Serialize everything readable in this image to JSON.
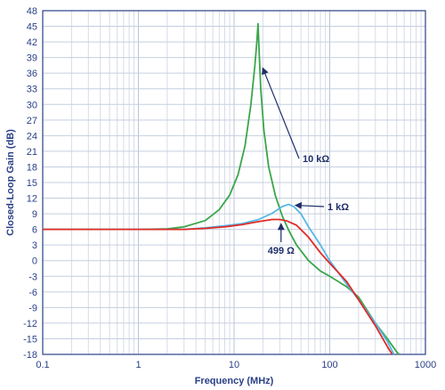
{
  "chart_data": {
    "type": "line",
    "title": "",
    "xlabel": "Frequency (MHz)",
    "ylabel": "Closed-Loop Gain (dB)",
    "xscale": "log",
    "xlim": [
      0.1,
      1000
    ],
    "ylim": [
      -18,
      48
    ],
    "xticks": [
      0.1,
      1,
      10,
      100,
      1000
    ],
    "xtick_labels": [
      "0.1",
      "1",
      "10",
      "100",
      "1000"
    ],
    "yticks": [
      -18,
      -15,
      -12,
      -9,
      -6,
      -3,
      0,
      3,
      6,
      9,
      12,
      15,
      18,
      21,
      24,
      27,
      30,
      33,
      36,
      39,
      42,
      45,
      48
    ],
    "grid": true,
    "series": [
      {
        "name": "10 kΩ",
        "color": "#3aa64a",
        "points": [
          [
            0.1,
            6
          ],
          [
            1,
            6
          ],
          [
            2,
            6.1
          ],
          [
            3,
            6.5
          ],
          [
            5,
            7.7
          ],
          [
            7,
            9.8
          ],
          [
            9,
            12.6
          ],
          [
            11,
            16.5
          ],
          [
            13,
            22
          ],
          [
            15,
            30
          ],
          [
            16.5,
            37.5
          ],
          [
            17.3,
            42
          ],
          [
            17.8,
            45.5
          ],
          [
            18.2,
            41
          ],
          [
            19,
            33
          ],
          [
            20.5,
            25
          ],
          [
            23,
            18
          ],
          [
            27,
            12.5
          ],
          [
            32,
            8.5
          ],
          [
            38,
            5.5
          ],
          [
            45,
            3
          ],
          [
            60,
            0
          ],
          [
            80,
            -2
          ],
          [
            100,
            -3
          ],
          [
            150,
            -5
          ],
          [
            200,
            -7
          ],
          [
            300,
            -12
          ],
          [
            400,
            -15
          ],
          [
            500,
            -17.5
          ],
          [
            530,
            -18
          ]
        ]
      },
      {
        "name": "1 kΩ",
        "color": "#55b8e6",
        "points": [
          [
            0.1,
            6
          ],
          [
            1,
            6
          ],
          [
            3,
            6
          ],
          [
            5,
            6.3
          ],
          [
            8,
            6.7
          ],
          [
            12,
            7.1
          ],
          [
            18,
            7.9
          ],
          [
            25,
            9.1
          ],
          [
            32,
            10.4
          ],
          [
            37,
            10.8
          ],
          [
            42,
            10.4
          ],
          [
            50,
            9.0
          ],
          [
            60,
            6.5
          ],
          [
            80,
            3
          ],
          [
            100,
            0
          ],
          [
            150,
            -4.5
          ],
          [
            200,
            -7.5
          ],
          [
            300,
            -12
          ],
          [
            400,
            -15.5
          ],
          [
            470,
            -18
          ]
        ]
      },
      {
        "name": "499 Ω",
        "color": "#e02a28",
        "points": [
          [
            0.1,
            6
          ],
          [
            1,
            6
          ],
          [
            3,
            6
          ],
          [
            5,
            6.2
          ],
          [
            8,
            6.5
          ],
          [
            12,
            6.9
          ],
          [
            18,
            7.5
          ],
          [
            25,
            7.9
          ],
          [
            30,
            7.9
          ],
          [
            36,
            7.6
          ],
          [
            45,
            6.8
          ],
          [
            60,
            4.5
          ],
          [
            80,
            1.5
          ],
          [
            100,
            -0.5
          ],
          [
            150,
            -4
          ],
          [
            200,
            -7.5
          ],
          [
            300,
            -12.5
          ],
          [
            400,
            -16.5
          ],
          [
            450,
            -18
          ]
        ]
      }
    ],
    "annotations": [
      {
        "text": "10 kΩ",
        "arrow_to": [
          18.7,
          37
        ]
      },
      {
        "text": "1 kΩ",
        "arrow_to": [
          41,
          10.8
        ]
      },
      {
        "text": "499 Ω",
        "arrow_to": [
          31,
          7.6
        ]
      }
    ]
  }
}
